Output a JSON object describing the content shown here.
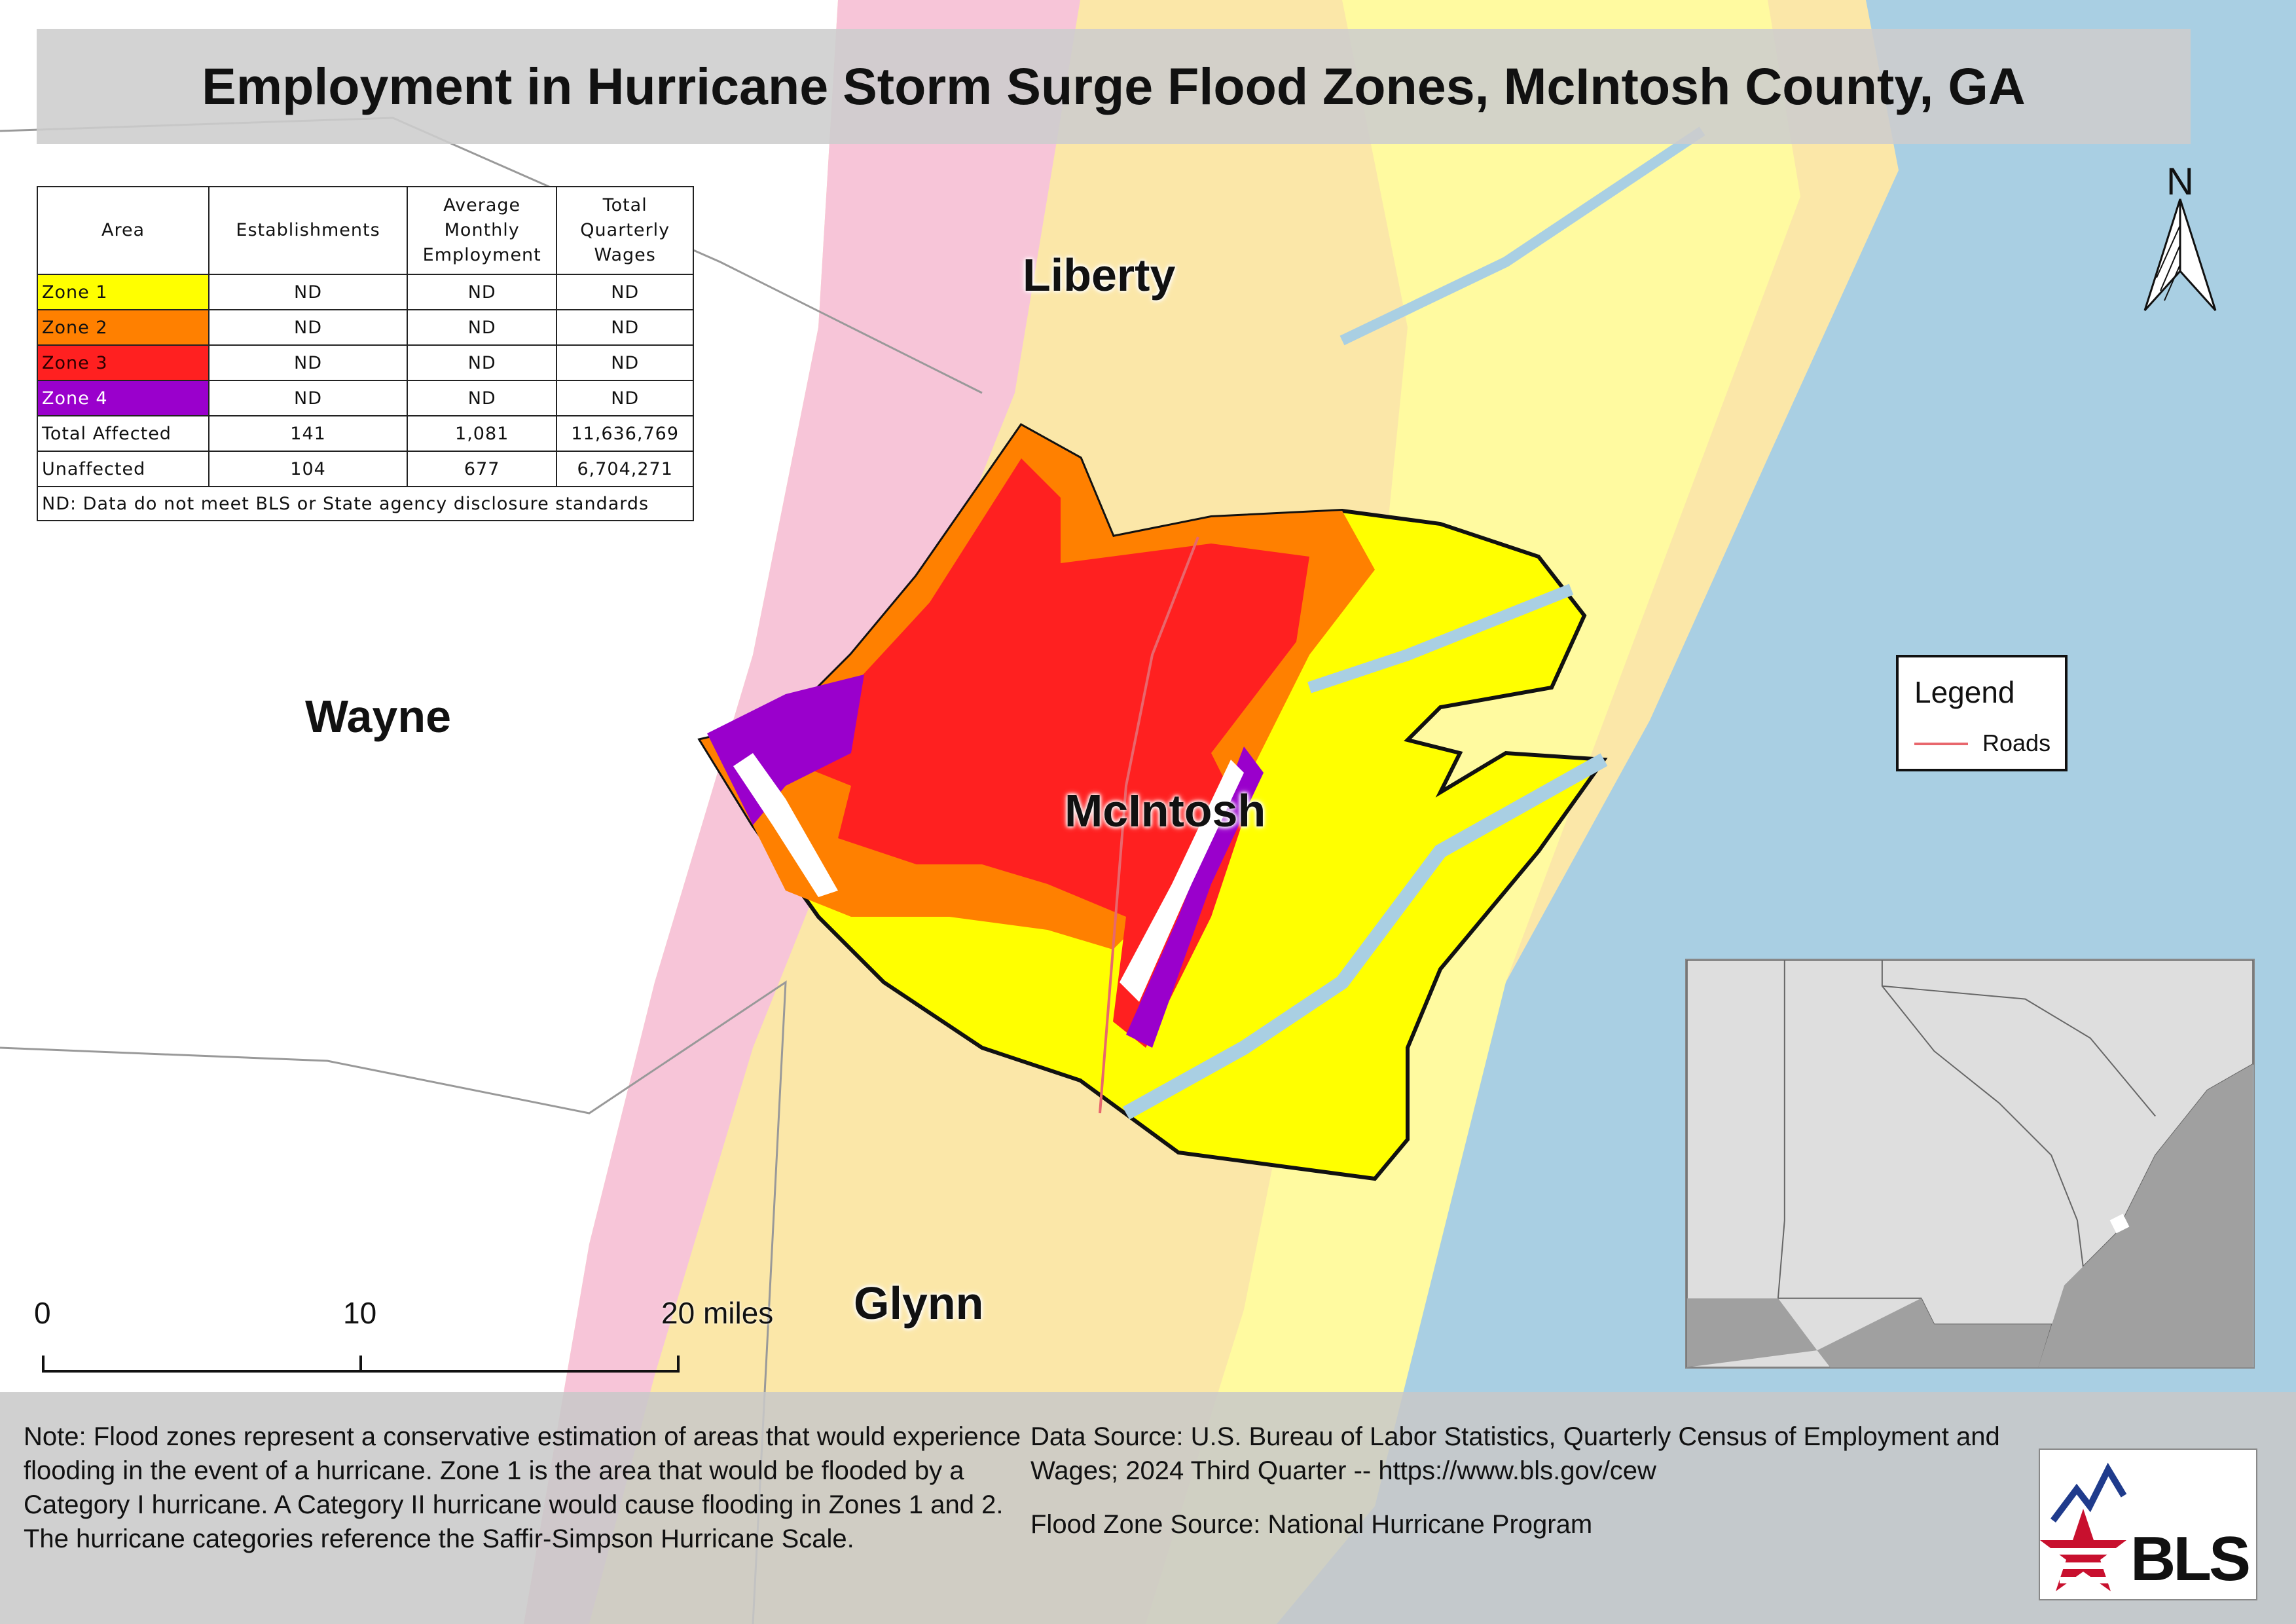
{
  "title": "Employment in Hurricane Storm Surge Flood Zones, McIntosh County, GA",
  "table": {
    "headers": [
      "Area",
      "Establishments",
      "Average Monthly Employment",
      "Total Quarterly Wages"
    ],
    "rows": [
      {
        "area": "Zone 1",
        "establishments": "ND",
        "employment": "ND",
        "wages": "ND",
        "color": "#ffff00"
      },
      {
        "area": "Zone 2",
        "establishments": "ND",
        "employment": "ND",
        "wages": "ND",
        "color": "#ff8000"
      },
      {
        "area": "Zone 3",
        "establishments": "ND",
        "employment": "ND",
        "wages": "ND",
        "color": "#ff2020"
      },
      {
        "area": "Zone 4",
        "establishments": "ND",
        "employment": "ND",
        "wages": "ND",
        "color": "#9a00cc"
      },
      {
        "area": "Total Affected",
        "establishments": "141",
        "employment": "1,081",
        "wages": "11,636,769"
      },
      {
        "area": "Unaffected",
        "establishments": "104",
        "employment": "677",
        "wages": "6,704,271"
      }
    ],
    "footnote": "ND: Data do not meet BLS or State agency disclosure standards"
  },
  "counties": {
    "liberty": "Liberty",
    "wayne": "Wayne",
    "mcintosh": "McIntosh",
    "glynn": "Glynn"
  },
  "legend": {
    "title": "Legend",
    "roads_label": "Roads",
    "roads_color": "#e8676d"
  },
  "north_label": "N",
  "scale": {
    "ticks": [
      "0",
      "10",
      "20 miles"
    ]
  },
  "note": "Note: Flood zones represent a conservative estimation of areas that would experience flooding in the event of a hurricane. Zone 1 is the area that would be flooded by a Category I hurricane. A Category II hurricane would cause flooding in Zones 1 and 2. The hurricane categories reference the Saffir-Simpson Hurricane Scale.",
  "data_source": "Data Source: U.S. Bureau of Labor Statistics, Quarterly Census of Employment and Wages; 2024 Third Quarter -- https://www.bls.gov/cew",
  "flood_source": "Flood Zone Source: National Hurricane Program",
  "logo_text": "BLS",
  "colors": {
    "water": "#a9cfe3",
    "zone1": "#ffff00",
    "zone2": "#ff8000",
    "zone3": "#ff2020",
    "zone4": "#9a00cc"
  }
}
